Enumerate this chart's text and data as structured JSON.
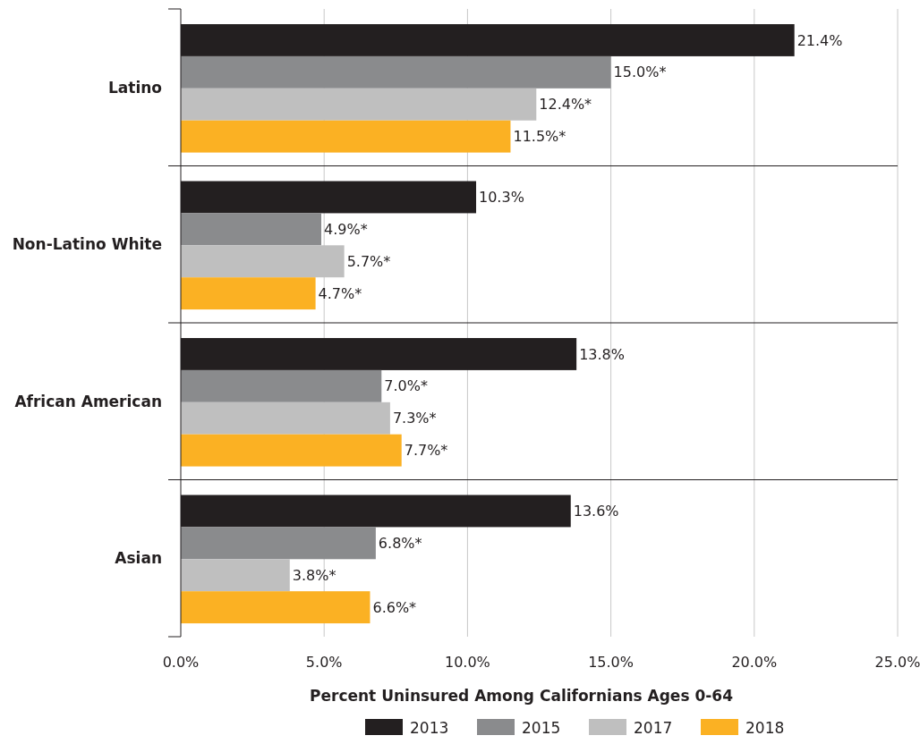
{
  "chart_data": {
    "type": "bar",
    "orientation": "horizontal",
    "categories": [
      "Latino",
      "Non-Latino White",
      "African American",
      "Asian"
    ],
    "series": [
      {
        "name": "2013",
        "color": "#231f20",
        "values": [
          21.4,
          10.3,
          13.8,
          13.6
        ],
        "value_labels": [
          "21.4%",
          "10.3%",
          "13.8%",
          "13.6%"
        ]
      },
      {
        "name": "2015",
        "color": "#8a8b8d",
        "values": [
          15.0,
          4.9,
          7.0,
          6.8
        ],
        "value_labels": [
          "15.0%*",
          "4.9%*",
          "7.0%*",
          "6.8%*"
        ]
      },
      {
        "name": "2017",
        "color": "#bfbfbf",
        "values": [
          12.4,
          5.7,
          7.3,
          3.8
        ],
        "value_labels": [
          "12.4%*",
          "5.7%*",
          "7.3%*",
          "3.8%*"
        ]
      },
      {
        "name": "2018",
        "color": "#fbb123",
        "values": [
          11.5,
          4.7,
          7.7,
          6.6
        ],
        "value_labels": [
          "11.5%*",
          "4.7%*",
          "7.7%*",
          "6.6%*"
        ]
      }
    ],
    "xlim": [
      0,
      25
    ],
    "xticks": [
      {
        "value": 0,
        "label": "0.0%"
      },
      {
        "value": 5,
        "label": "5.0%"
      },
      {
        "value": 10,
        "label": "10.0%"
      },
      {
        "value": 15,
        "label": "15.0%"
      },
      {
        "value": 20,
        "label": "20.0%"
      },
      {
        "value": 25,
        "label": "25.0%"
      }
    ],
    "xlabel": "Percent Uninsured Among Californians Ages 0-64",
    "grid": "x",
    "legend": "bottom"
  }
}
